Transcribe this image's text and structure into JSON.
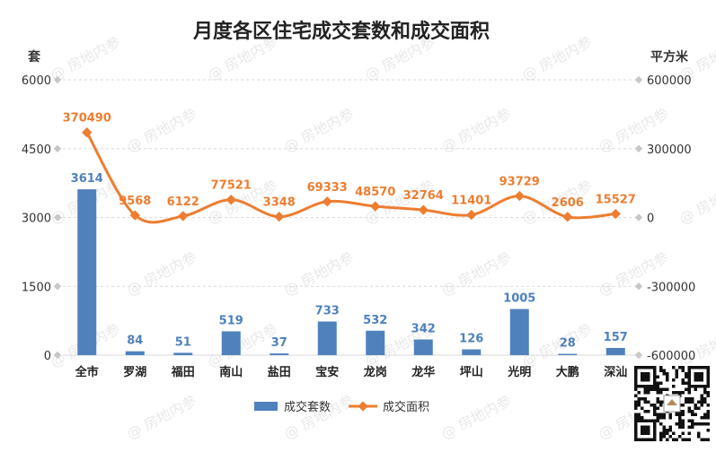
{
  "chart_data": {
    "type": "bar+line",
    "title": "月度各区住宅成交套数和成交面积",
    "y_left_label": "套",
    "y_right_label": "平方米",
    "y_left_ticks": [
      "0",
      "1500",
      "3000",
      "4500",
      "6000"
    ],
    "y_right_ticks": [
      "-600000",
      "-300000",
      "0",
      "300000",
      "600000"
    ],
    "y_left_range": [
      0,
      6000
    ],
    "y_right_range": [
      -600000,
      600000
    ],
    "categories": [
      "全市",
      "罗湖",
      "福田",
      "南山",
      "盐田",
      "宝安",
      "龙岗",
      "龙华",
      "坪山",
      "光明",
      "大鹏",
      "深汕"
    ],
    "series": [
      {
        "name": "成交套数",
        "kind": "bar",
        "axis": "left",
        "color": "#4f81bd",
        "values": [
          3614,
          84,
          51,
          519,
          37,
          733,
          532,
          342,
          126,
          1005,
          28,
          157
        ],
        "labels": [
          "3614",
          "84",
          "51",
          "519",
          "37",
          "733",
          "532",
          "342",
          "126",
          "1005",
          "28",
          "157"
        ]
      },
      {
        "name": "成交面积",
        "kind": "line",
        "axis": "right",
        "color": "#ed7d31",
        "values": [
          370490,
          9568,
          6122,
          77521,
          3348,
          69333,
          48570,
          32764,
          11401,
          93729,
          2606,
          15527
        ],
        "labels": [
          "370490",
          "9568",
          "6122",
          "77521",
          "3348",
          "69333",
          "48570",
          "32764",
          "11401",
          "93729",
          "2606",
          "15527"
        ]
      }
    ],
    "legend_position": "bottom",
    "watermark": "房地内参"
  }
}
